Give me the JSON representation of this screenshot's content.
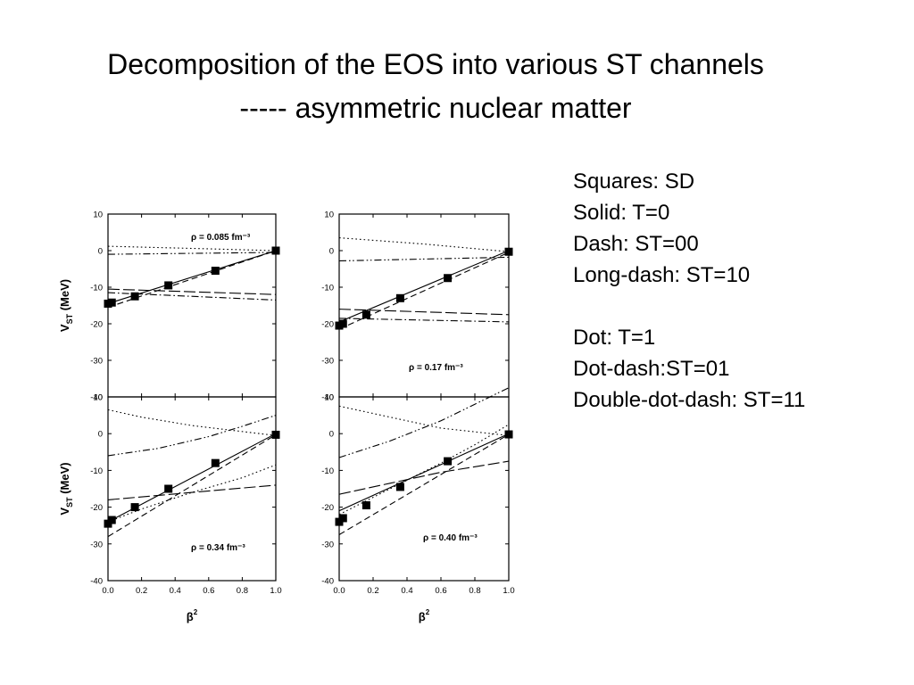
{
  "slide": {
    "title_line1": "Decomposition of the EOS into various ST channels",
    "title_line2": "----- asymmetric nuclear matter",
    "legend": {
      "group1": [
        "Squares: SD",
        "Solid: T=0",
        "Dash: ST=00",
        "Long-dash: ST=10"
      ],
      "group2": [
        "Dot: T=1",
        "Dot-dash:ST=01",
        "Double-dot-dash: ST=11"
      ]
    }
  },
  "chart_data": [
    {
      "type": "line",
      "panel": "top-left",
      "annotation_label": "ρ = 0.085 fm⁻³",
      "ylabel": "V_ST (MeV)",
      "ylabel_main": "V",
      "ylabel_sub": "ST",
      "ylabel_rest": " (MeV)",
      "xlim": [
        0,
        1
      ],
      "ylim": [
        -40,
        10
      ],
      "yticks": [
        10,
        0,
        -10,
        -20,
        -30,
        -40
      ],
      "ytick_labels": [
        "10",
        "0",
        "-10",
        "-20",
        "-30",
        "-40"
      ],
      "squares": {
        "x": [
          0,
          0.0225,
          0.16,
          0.36,
          0.64,
          1.0
        ],
        "y": [
          -14.5,
          -14.2,
          -12.5,
          -9.5,
          -5.5,
          0
        ]
      },
      "series": [
        {
          "line": "solid",
          "x": [
            0,
            1
          ],
          "y": [
            -14.5,
            0
          ]
        },
        {
          "line": "dash",
          "x": [
            0,
            1
          ],
          "y": [
            -15.5,
            0
          ]
        },
        {
          "line": "long-dash",
          "x": [
            0,
            1
          ],
          "y": [
            -10.5,
            -12.0
          ]
        },
        {
          "line": "dot",
          "x": [
            0,
            0.5,
            1
          ],
          "y": [
            1.2,
            0.6,
            0
          ]
        },
        {
          "line": "dot-dash",
          "x": [
            0,
            1
          ],
          "y": [
            -11.5,
            -13.5
          ]
        },
        {
          "line": "double-dot-dash",
          "x": [
            0,
            1
          ],
          "y": [
            -1.0,
            -0.5
          ]
        }
      ]
    },
    {
      "type": "line",
      "panel": "top-right",
      "annotation_label": "ρ = 0.17 fm⁻³",
      "xlim": [
        0,
        1
      ],
      "ylim": [
        -40,
        10
      ],
      "yticks": [
        10,
        0,
        -10,
        -20,
        -30,
        -40
      ],
      "ytick_labels": [
        "10",
        "0",
        "-10",
        "-20",
        "-30",
        "-40"
      ],
      "squares": {
        "x": [
          0,
          0.0225,
          0.16,
          0.36,
          0.64,
          1.0
        ],
        "y": [
          -20.5,
          -20.0,
          -17.5,
          -13.0,
          -7.5,
          -0.3
        ]
      },
      "series": [
        {
          "line": "solid",
          "x": [
            0,
            1
          ],
          "y": [
            -19.5,
            0
          ]
        },
        {
          "line": "dash",
          "x": [
            0,
            1
          ],
          "y": [
            -21.5,
            -0.5
          ]
        },
        {
          "line": "long-dash",
          "x": [
            0,
            1
          ],
          "y": [
            -16.0,
            -17.5
          ]
        },
        {
          "line": "dot",
          "x": [
            0,
            0.5,
            1
          ],
          "y": [
            3.5,
            1.8,
            -0.3
          ]
        },
        {
          "line": "dot-dash",
          "x": [
            0,
            1
          ],
          "y": [
            -18.5,
            -19.5
          ]
        },
        {
          "line": "double-dot-dash",
          "x": [
            0,
            1
          ],
          "y": [
            -2.8,
            -1.8
          ]
        }
      ]
    },
    {
      "type": "line",
      "panel": "bottom-left",
      "annotation_label": "ρ = 0.34 fm⁻³",
      "ylabel": "V_ST (MeV)",
      "ylabel_main": "V",
      "ylabel_sub": "ST",
      "ylabel_rest": " (MeV)",
      "xlabel_main": "β",
      "xlabel_sup": "2",
      "xlim": [
        0,
        1
      ],
      "ylim": [
        -40,
        10
      ],
      "xticks": [
        0,
        0.2,
        0.4,
        0.6,
        0.8,
        1.0
      ],
      "xtick_labels": [
        "0.0",
        "0.2",
        "0.4",
        "0.6",
        "0.8",
        "1.0"
      ],
      "yticks": [
        10,
        0,
        -10,
        -20,
        -30,
        -40
      ],
      "ytick_labels": [
        "10",
        "0",
        "-10",
        "-20",
        "-30",
        "-40"
      ],
      "squares": {
        "x": [
          0,
          0.0225,
          0.16,
          0.36,
          0.64,
          1.0
        ],
        "y": [
          -24.5,
          -23.5,
          -20.0,
          -15.0,
          -8.0,
          -0.3
        ]
      },
      "series": [
        {
          "line": "solid",
          "x": [
            0,
            1
          ],
          "y": [
            -24.0,
            0
          ]
        },
        {
          "line": "dash",
          "x": [
            0,
            1
          ],
          "y": [
            -28.0,
            -0.3
          ]
        },
        {
          "line": "long-dash",
          "x": [
            0,
            0.5,
            1
          ],
          "y": [
            -18.0,
            -16.0,
            -14.0
          ]
        },
        {
          "line": "dot",
          "x": [
            0,
            0.2,
            0.5,
            1
          ],
          "y": [
            6.5,
            4.5,
            2.2,
            -0.5
          ]
        },
        {
          "line": "dot",
          "x": [
            0,
            0.2,
            0.5,
            0.8,
            1
          ],
          "y": [
            -24.0,
            -20.5,
            -16.0,
            -12.0,
            -8.5
          ]
        },
        {
          "line": "double-dot-dash",
          "x": [
            0,
            0.3,
            0.6,
            0.8,
            1
          ],
          "y": [
            -6.0,
            -4.0,
            -0.8,
            2.0,
            5.0
          ]
        }
      ]
    },
    {
      "type": "line",
      "panel": "bottom-right",
      "annotation_label": "ρ = 0.40 fm⁻³",
      "xlabel_main": "β",
      "xlabel_sup": "2",
      "xlim": [
        0,
        1
      ],
      "ylim": [
        -40,
        10
      ],
      "xticks": [
        0,
        0.2,
        0.4,
        0.6,
        0.8,
        1.0
      ],
      "xtick_labels": [
        "0.0",
        "0.2",
        "0.4",
        "0.6",
        "0.8",
        "1.0"
      ],
      "yticks": [
        10,
        0,
        -10,
        -20,
        -30,
        -40
      ],
      "ytick_labels": [
        "10",
        "0",
        "-10",
        "-20",
        "-30",
        "-40"
      ],
      "squares": {
        "x": [
          0,
          0.0225,
          0.16,
          0.36,
          0.64,
          1.0
        ],
        "y": [
          -24.0,
          -23.0,
          -19.5,
          -14.5,
          -7.5,
          -0.2
        ]
      },
      "series": [
        {
          "line": "solid",
          "x": [
            0,
            1
          ],
          "y": [
            -21.0,
            0
          ]
        },
        {
          "line": "dash",
          "x": [
            0,
            1
          ],
          "y": [
            -27.5,
            -0.2
          ]
        },
        {
          "line": "long-dash",
          "x": [
            0,
            0.3,
            0.6,
            1
          ],
          "y": [
            -16.5,
            -13.5,
            -10.5,
            -7.5
          ]
        },
        {
          "line": "dot",
          "x": [
            0,
            0.3,
            0.6,
            1
          ],
          "y": [
            7.5,
            4.5,
            1.5,
            -0.5
          ]
        },
        {
          "line": "dot",
          "x": [
            0,
            0.3,
            0.6,
            0.8,
            1
          ],
          "y": [
            -22.0,
            -15.0,
            -8.0,
            -3.0,
            2.5
          ]
        },
        {
          "line": "double-dot-dash",
          "x": [
            0,
            0.3,
            0.6,
            0.8,
            1
          ],
          "y": [
            -6.5,
            -2.0,
            3.5,
            8.0,
            12.5
          ]
        }
      ]
    }
  ]
}
